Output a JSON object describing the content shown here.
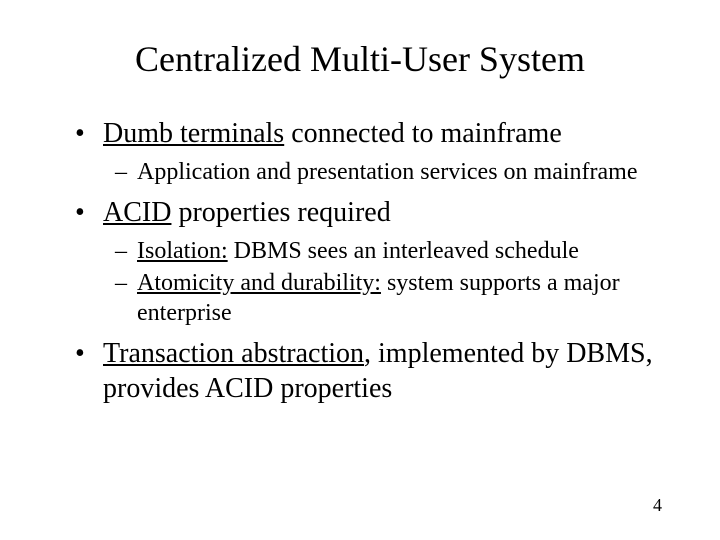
{
  "slide": {
    "title": "Centralized Multi-User System",
    "pageNumber": "4",
    "background_color": "#ffffff",
    "text_color": "#000000",
    "title_fontsize": 36,
    "bullet_fontsize": 28,
    "sub_fontsize": 24,
    "pagenum_fontsize": 18,
    "font_family": "Times New Roman",
    "bullets": [
      {
        "prefix": "",
        "underlined": "Dumb terminals",
        "suffix": " connected to mainframe",
        "subs": [
          {
            "text": "Application and presentation services on mainframe"
          }
        ]
      },
      {
        "prefix": "",
        "underlined": "ACID",
        "suffix": " properties required",
        "subs": [
          {
            "underlined": "Isolation:",
            "suffix": " DBMS sees an interleaved schedule"
          },
          {
            "underlined": "Atomicity and durability:",
            "suffix": " system supports a major enterprise"
          }
        ]
      },
      {
        "prefix": "",
        "underlined": "Transaction abstraction",
        "suffix": ", implemented by DBMS, provides ACID properties",
        "subs": []
      }
    ]
  }
}
